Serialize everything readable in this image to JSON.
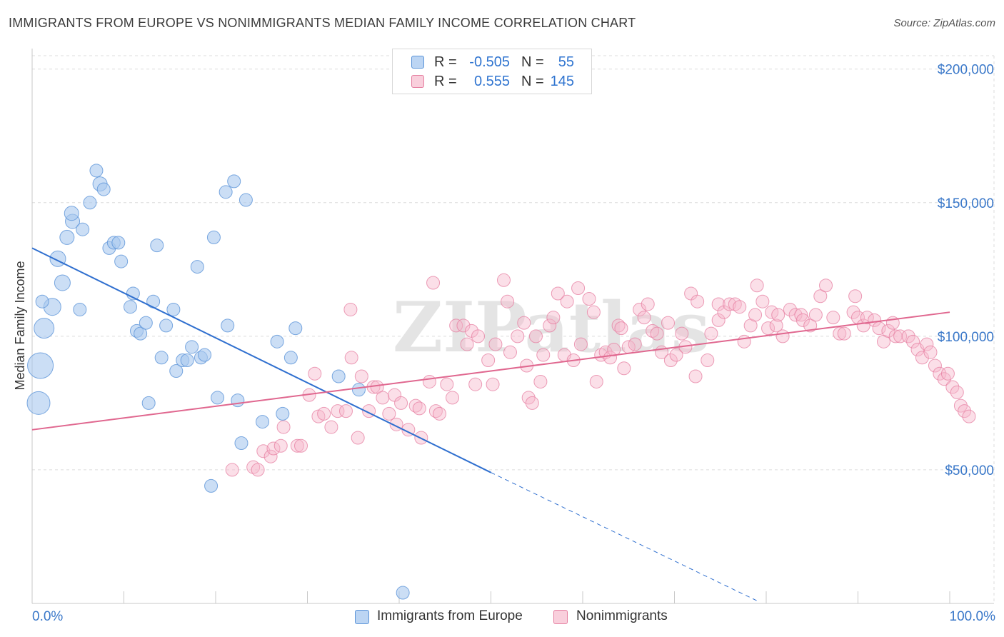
{
  "title": "IMMIGRANTS FROM EUROPE VS NONIMMIGRANTS MEDIAN FAMILY INCOME CORRELATION CHART",
  "source": "Source: ZipAtlas.com",
  "watermark": "ZIPatlas",
  "legend": {
    "rows": [
      {
        "r_label": "R =",
        "r_value": "-0.505",
        "n_label": "N =",
        "n_value": "55"
      },
      {
        "r_label": "R =",
        "r_value": "0.555",
        "n_label": "N =",
        "n_value": "145"
      }
    ]
  },
  "bottom_legend": {
    "series1": "Immigrants from Europe",
    "series2": "Nonimmigrants"
  },
  "colors": {
    "blue_fill": "#a9c8ef",
    "blue_stroke": "#5b94d8",
    "blue_line": "#2f6fcf",
    "pink_fill": "#f7b9cb",
    "pink_stroke": "#e57ea0",
    "pink_line": "#e0678f",
    "axis_label": "#3a78c9",
    "grid": "#dcdcdc"
  },
  "chart_data": {
    "type": "scatter",
    "title": "IMMIGRANTS FROM EUROPE VS NONIMMIGRANTS MEDIAN FAMILY INCOME CORRELATION CHART",
    "xlabel": "",
    "ylabel": "Median Family Income",
    "xlim": [
      0,
      100
    ],
    "ylim": [
      0,
      205000
    ],
    "x_tick_labels": [
      "0.0%",
      "100.0%"
    ],
    "y_ticks": [
      50000,
      100000,
      150000,
      200000
    ],
    "y_tick_labels": [
      "$50,000",
      "$100,000",
      "$150,000",
      "$200,000"
    ],
    "series": [
      {
        "name": "Immigrants from Europe",
        "r": -0.505,
        "n": 55,
        "trend": {
          "x0": 0,
          "y0": 133000,
          "x1": 50,
          "y1": 49000,
          "dash_to_x": 79,
          "dash_to_y": 1000
        },
        "points": [
          [
            0.7,
            75000,
            16
          ],
          [
            0.9,
            89000,
            18
          ],
          [
            1.3,
            103000,
            14
          ],
          [
            2.2,
            111000,
            12
          ],
          [
            3.3,
            120000,
            11
          ],
          [
            2.8,
            129000,
            11
          ],
          [
            3.8,
            137000,
            10
          ],
          [
            4.4,
            143000,
            10
          ],
          [
            4.3,
            146000,
            10
          ],
          [
            5.5,
            140000,
            9
          ],
          [
            6.3,
            150000,
            9
          ],
          [
            7.4,
            157000,
            10
          ],
          [
            7.0,
            162000,
            9
          ],
          [
            7.8,
            155000,
            9
          ],
          [
            8.4,
            133000,
            9
          ],
          [
            8.9,
            135000,
            9
          ],
          [
            9.4,
            135000,
            9
          ],
          [
            9.7,
            128000,
            9
          ],
          [
            5.2,
            110000,
            9
          ],
          [
            10.7,
            111000,
            9
          ],
          [
            11.0,
            116000,
            9
          ],
          [
            11.4,
            102000,
            9
          ],
          [
            11.8,
            101000,
            9
          ],
          [
            12.4,
            105000,
            9
          ],
          [
            13.2,
            113000,
            9
          ],
          [
            13.6,
            134000,
            9
          ],
          [
            14.1,
            92000,
            9
          ],
          [
            14.6,
            104000,
            9
          ],
          [
            15.4,
            110000,
            9
          ],
          [
            15.7,
            87000,
            9
          ],
          [
            16.4,
            91000,
            9
          ],
          [
            16.9,
            91000,
            9
          ],
          [
            17.4,
            96000,
            9
          ],
          [
            18.0,
            126000,
            9
          ],
          [
            18.4,
            92000,
            9
          ],
          [
            18.8,
            93000,
            9
          ],
          [
            12.7,
            75000,
            9
          ],
          [
            19.5,
            44000,
            9
          ],
          [
            19.8,
            137000,
            9
          ],
          [
            20.2,
            77000,
            9
          ],
          [
            21.1,
            154000,
            9
          ],
          [
            21.3,
            104000,
            9
          ],
          [
            22.0,
            158000,
            9
          ],
          [
            22.4,
            76000,
            9
          ],
          [
            22.8,
            60000,
            9
          ],
          [
            23.3,
            151000,
            9
          ],
          [
            25.1,
            68000,
            9
          ],
          [
            26.7,
            98000,
            9
          ],
          [
            27.3,
            71000,
            9
          ],
          [
            28.2,
            92000,
            9
          ],
          [
            28.7,
            103000,
            9
          ],
          [
            33.4,
            85000,
            9
          ],
          [
            35.6,
            80000,
            9
          ],
          [
            40.4,
            4000,
            9
          ],
          [
            1.1,
            113000,
            9
          ]
        ]
      },
      {
        "name": "Nonimmigrants",
        "r": 0.555,
        "n": 145,
        "trend": {
          "x0": 0,
          "y0": 65000,
          "x1": 100,
          "y1": 109000
        },
        "points": [
          [
            21.8,
            50000
          ],
          [
            24.1,
            51000
          ],
          [
            24.6,
            50000
          ],
          [
            25.2,
            57000
          ],
          [
            26.0,
            55000
          ],
          [
            26.3,
            58000
          ],
          [
            27.1,
            59000
          ],
          [
            27.4,
            66000
          ],
          [
            28.9,
            59000
          ],
          [
            29.3,
            59000
          ],
          [
            30.2,
            78000
          ],
          [
            30.8,
            86000
          ],
          [
            31.2,
            70000
          ],
          [
            31.8,
            71000
          ],
          [
            32.6,
            66000
          ],
          [
            33.3,
            72000
          ],
          [
            34.2,
            72000
          ],
          [
            34.7,
            110000
          ],
          [
            34.8,
            92000
          ],
          [
            35.5,
            62000
          ],
          [
            35.9,
            85000
          ],
          [
            36.7,
            72000
          ],
          [
            37.2,
            81000
          ],
          [
            37.6,
            81000
          ],
          [
            38.2,
            77000
          ],
          [
            38.9,
            71000
          ],
          [
            39.5,
            78000
          ],
          [
            39.7,
            67000
          ],
          [
            40.2,
            75000
          ],
          [
            41.0,
            65000
          ],
          [
            41.8,
            74000
          ],
          [
            42.2,
            73000
          ],
          [
            42.4,
            62000
          ],
          [
            43.3,
            83000
          ],
          [
            43.7,
            120000
          ],
          [
            44.0,
            72000
          ],
          [
            44.4,
            71000
          ],
          [
            45.2,
            82000
          ],
          [
            45.8,
            77000
          ],
          [
            46.2,
            104000
          ],
          [
            47.0,
            104000
          ],
          [
            47.4,
            97000
          ],
          [
            47.9,
            102000
          ],
          [
            48.3,
            82000
          ],
          [
            48.6,
            100000
          ],
          [
            49.7,
            91000
          ],
          [
            50.2,
            82000
          ],
          [
            50.5,
            97000
          ],
          [
            51.4,
            121000
          ],
          [
            51.8,
            113000
          ],
          [
            52.1,
            94000
          ],
          [
            52.9,
            100000
          ],
          [
            53.6,
            105000
          ],
          [
            53.9,
            89000
          ],
          [
            54.1,
            77000
          ],
          [
            54.5,
            75000
          ],
          [
            54.9,
            100000
          ],
          [
            55.4,
            83000
          ],
          [
            55.7,
            93000
          ],
          [
            56.4,
            104000
          ],
          [
            56.8,
            107000
          ],
          [
            57.3,
            116000
          ],
          [
            58.0,
            93000
          ],
          [
            58.3,
            113000
          ],
          [
            59.0,
            91000
          ],
          [
            59.5,
            118000
          ],
          [
            59.8,
            97000
          ],
          [
            60.7,
            114000
          ],
          [
            61.2,
            109000
          ],
          [
            61.5,
            83000
          ],
          [
            62.0,
            93000
          ],
          [
            62.5,
            94000
          ],
          [
            63.0,
            92000
          ],
          [
            63.4,
            95000
          ],
          [
            63.9,
            104000
          ],
          [
            64.2,
            103000
          ],
          [
            64.5,
            88000
          ],
          [
            65.0,
            96000
          ],
          [
            65.7,
            97000
          ],
          [
            66.2,
            110000
          ],
          [
            66.7,
            107000
          ],
          [
            67.1,
            112000
          ],
          [
            67.6,
            102000
          ],
          [
            68.1,
            101000
          ],
          [
            68.6,
            94000
          ],
          [
            69.3,
            105000
          ],
          [
            69.6,
            91000
          ],
          [
            70.2,
            93000
          ],
          [
            70.8,
            101000
          ],
          [
            71.2,
            96000
          ],
          [
            71.8,
            116000
          ],
          [
            72.3,
            85000
          ],
          [
            72.5,
            113000
          ],
          [
            73.6,
            91000
          ],
          [
            74.0,
            101000
          ],
          [
            74.8,
            112000
          ],
          [
            74.8,
            106000
          ],
          [
            75.4,
            109000
          ],
          [
            76.0,
            112000
          ],
          [
            76.6,
            112000
          ],
          [
            77.1,
            111000
          ],
          [
            77.6,
            98000
          ],
          [
            78.3,
            104000
          ],
          [
            78.8,
            108000
          ],
          [
            79.0,
            119000
          ],
          [
            79.6,
            113000
          ],
          [
            80.2,
            103000
          ],
          [
            80.6,
            109000
          ],
          [
            81.1,
            104000
          ],
          [
            81.3,
            108000
          ],
          [
            81.8,
            100000
          ],
          [
            82.6,
            110000
          ],
          [
            83.2,
            108000
          ],
          [
            83.8,
            108000
          ],
          [
            84.0,
            106000
          ],
          [
            84.8,
            104000
          ],
          [
            85.4,
            108000
          ],
          [
            85.9,
            115000
          ],
          [
            86.5,
            119000
          ],
          [
            87.3,
            107000
          ],
          [
            88.0,
            101000
          ],
          [
            88.5,
            101000
          ],
          [
            89.5,
            109000
          ],
          [
            89.7,
            115000
          ],
          [
            90.0,
            107000
          ],
          [
            90.6,
            104000
          ],
          [
            91.0,
            107000
          ],
          [
            91.8,
            106000
          ],
          [
            92.3,
            103000
          ],
          [
            92.8,
            98000
          ],
          [
            93.3,
            102000
          ],
          [
            93.8,
            105000
          ],
          [
            94.1,
            100000
          ],
          [
            94.6,
            100000
          ],
          [
            95.5,
            100000
          ],
          [
            96.0,
            98000
          ],
          [
            96.5,
            95000
          ],
          [
            97.0,
            92000
          ],
          [
            97.5,
            97000
          ],
          [
            97.9,
            94000
          ],
          [
            98.4,
            89000
          ],
          [
            98.9,
            86000
          ],
          [
            99.4,
            84000
          ],
          [
            99.8,
            86000
          ],
          [
            100.3,
            81000
          ],
          [
            100.8,
            79000
          ],
          [
            101.2,
            74000
          ],
          [
            101.6,
            72000
          ],
          [
            102.1,
            70000
          ]
        ]
      }
    ]
  }
}
